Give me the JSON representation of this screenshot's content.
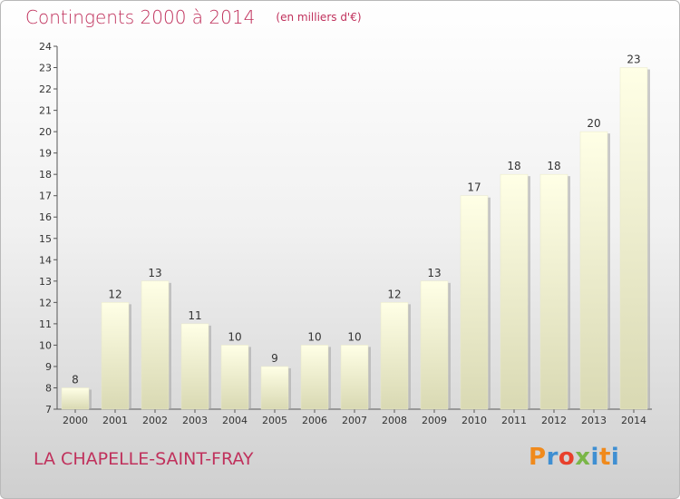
{
  "header": {
    "title": "Contingents 2000 à 2014",
    "subtitle": "(en milliers d'€)"
  },
  "footer": {
    "commune": "LA CHAPELLE-SAINT-FRAY",
    "logo_text": "Proxiti",
    "logo_colors": [
      "#f08a1c",
      "#3f8fd2",
      "#e8402c",
      "#7ab648",
      "#3f8fd2",
      "#f08a1c",
      "#3f8fd2"
    ]
  },
  "colors": {
    "title": "#c0315c",
    "bar_top": "#ffffe6",
    "bar_bottom": "#d9d9b3",
    "bar_shadow": "#9a9a9a"
  },
  "chart_data": {
    "type": "bar",
    "title": "Contingents 2000 à 2014",
    "subtitle": "(en milliers d'€)",
    "categories": [
      "2000",
      "2001",
      "2002",
      "2003",
      "2004",
      "2005",
      "2006",
      "2007",
      "2008",
      "2009",
      "2010",
      "2011",
      "2012",
      "2013",
      "2014"
    ],
    "values": [
      8,
      12,
      13,
      11,
      10,
      9,
      10,
      10,
      12,
      13,
      17,
      18,
      18,
      20,
      23
    ],
    "ylim": [
      7,
      24
    ],
    "yticks": [
      7,
      8,
      9,
      10,
      11,
      12,
      13,
      14,
      15,
      16,
      17,
      18,
      19,
      20,
      21,
      22,
      23,
      24
    ],
    "grid": false,
    "xlabel": "",
    "ylabel": ""
  }
}
